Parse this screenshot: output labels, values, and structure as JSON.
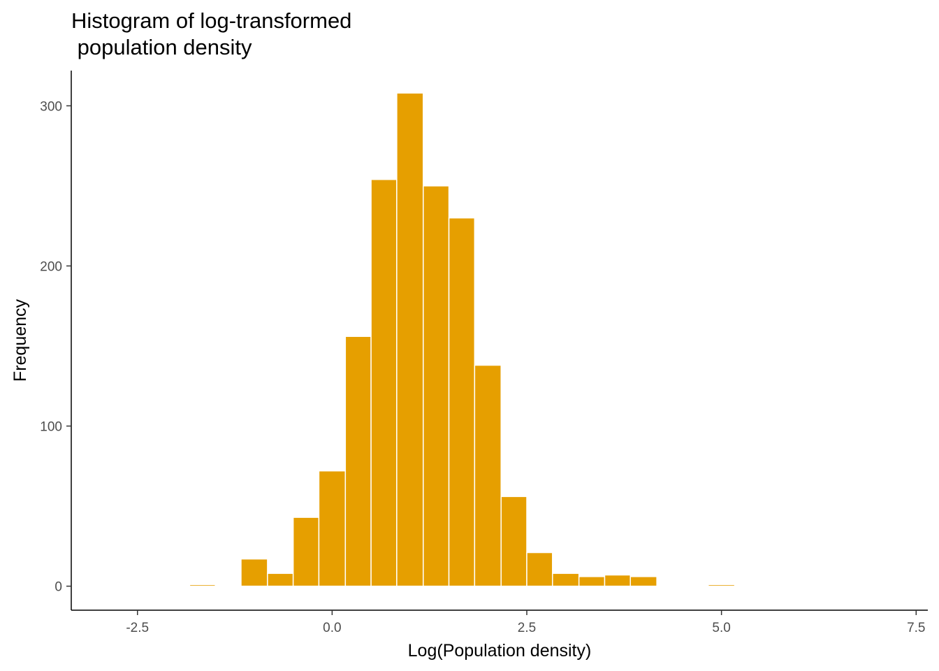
{
  "chart_data": {
    "type": "bar",
    "title_lines": [
      "Histogram of log-transformed",
      " population density"
    ],
    "xlabel": "Log(Population density)",
    "ylabel": "Frequency",
    "x_ticks": [
      -2.5,
      0,
      2.5,
      5,
      7.5
    ],
    "x_tick_labels": [
      "-2.5",
      "0.0",
      "2.5",
      "5.0",
      "7.5"
    ],
    "y_ticks": [
      0,
      100,
      200,
      300
    ],
    "y_tick_labels": [
      "0",
      "100",
      "200",
      "300"
    ],
    "xlim": [
      -3.35,
      7.65
    ],
    "ylim": [
      -15,
      322
    ],
    "grid": false,
    "bar_color": "#E69F00",
    "bar_edge_color": "#ffffff",
    "bins": [
      {
        "x0": -1.83,
        "x1": -1.5,
        "count": 1
      },
      {
        "x0": -1.17,
        "x1": -0.83,
        "count": 17
      },
      {
        "x0": -0.83,
        "x1": -0.5,
        "count": 8
      },
      {
        "x0": -0.5,
        "x1": -0.17,
        "count": 43
      },
      {
        "x0": -0.17,
        "x1": 0.17,
        "count": 72
      },
      {
        "x0": 0.17,
        "x1": 0.5,
        "count": 156
      },
      {
        "x0": 0.5,
        "x1": 0.83,
        "count": 254
      },
      {
        "x0": 0.83,
        "x1": 1.17,
        "count": 308
      },
      {
        "x0": 1.17,
        "x1": 1.5,
        "count": 250
      },
      {
        "x0": 1.5,
        "x1": 1.83,
        "count": 230
      },
      {
        "x0": 1.83,
        "x1": 2.17,
        "count": 138
      },
      {
        "x0": 2.17,
        "x1": 2.5,
        "count": 56
      },
      {
        "x0": 2.5,
        "x1": 2.83,
        "count": 21
      },
      {
        "x0": 2.83,
        "x1": 3.17,
        "count": 8
      },
      {
        "x0": 3.17,
        "x1": 3.5,
        "count": 6
      },
      {
        "x0": 3.5,
        "x1": 3.83,
        "count": 7
      },
      {
        "x0": 3.83,
        "x1": 4.17,
        "count": 6
      },
      {
        "x0": 4.83,
        "x1": 5.17,
        "count": 1
      }
    ]
  }
}
